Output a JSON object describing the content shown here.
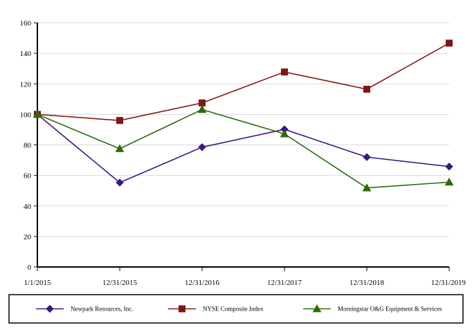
{
  "chart_data": {
    "type": "line",
    "categories": [
      "1/1/2015",
      "12/31/2015",
      "12/31/2016",
      "12/31/2017",
      "12/31/2018",
      "12/31/2019"
    ],
    "ylim": [
      0,
      160
    ],
    "yticks": [
      0,
      20,
      40,
      60,
      80,
      100,
      120,
      140,
      160
    ],
    "grid": true,
    "legend_position": "bottom",
    "series": [
      {
        "name": "Newpark Resources, Inc.",
        "marker": "diamond",
        "color": "#3b1780",
        "values": [
          100,
          55.3,
          78.5,
          90.2,
          72.0,
          65.8
        ]
      },
      {
        "name": "NYSE Composite Index",
        "marker": "square",
        "color": "#7f1715",
        "values": [
          100,
          96.0,
          107.5,
          127.8,
          116.5,
          146.7
        ]
      },
      {
        "name": "Morningstar O&G Equipment & Services",
        "marker": "triangle",
        "color": "#2d6a0b",
        "values": [
          100,
          77.5,
          103.2,
          87.2,
          51.8,
          55.6
        ]
      }
    ]
  }
}
